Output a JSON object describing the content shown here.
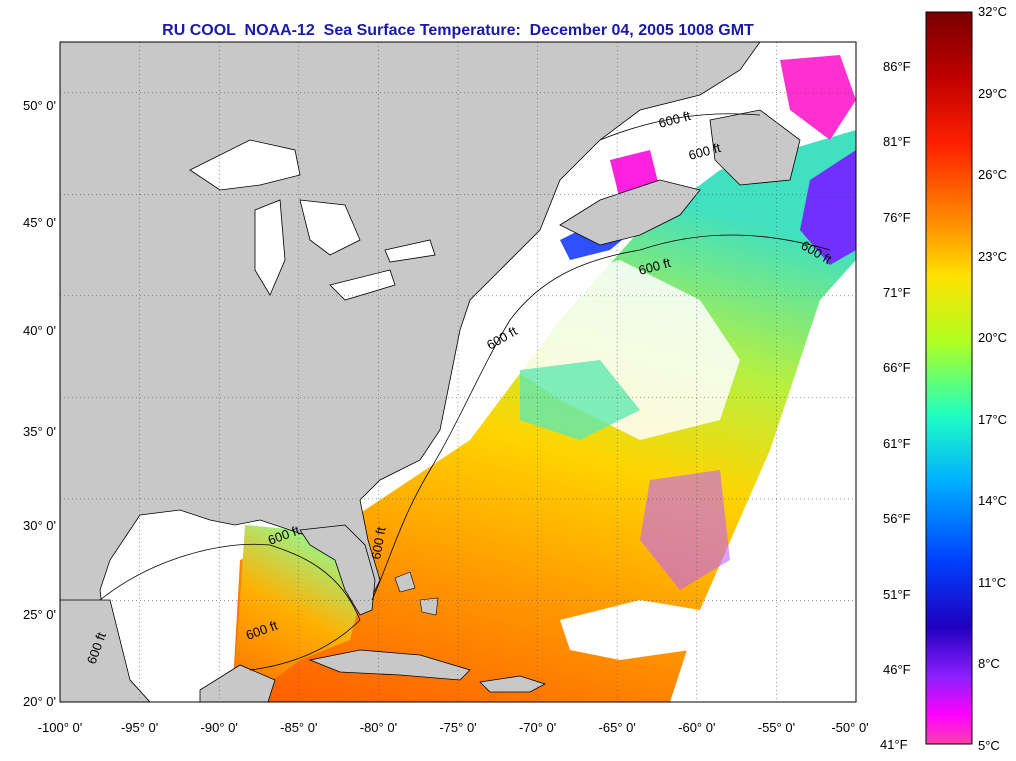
{
  "title": "RU COOL  NOAA-12  Sea Surface Temperature:  December 04, 2005 1008 GMT",
  "map": {
    "lon_range": [
      -100,
      -50
    ],
    "lat_range": [
      20,
      52.5
    ],
    "lon_ticks": [
      "-100° 0'",
      "-95° 0'",
      "-90° 0'",
      "-85° 0'",
      "-80° 0'",
      "-75° 0'",
      "-70° 0'",
      "-65° 0'",
      "-60° 0'",
      "-55° 0'",
      "-50° 0'"
    ],
    "lat_ticks": [
      "50° 0'",
      "45° 0'",
      "40° 0'",
      "35° 0'",
      "30° 0'",
      "25° 0'",
      "20° 0'"
    ],
    "contour_labels": [
      "600 ft",
      "600 ft",
      "600 ft",
      "600 ft",
      "600 ft",
      "600 ft",
      "600 ft",
      "600 ft",
      "600 ft"
    ],
    "grid": true,
    "land_color": "#c8c8c8",
    "no_data_color": "#ffffff"
  },
  "colorbar": {
    "celsius_labels": [
      "32°C",
      "29°C",
      "26°C",
      "23°C",
      "20°C",
      "17°C",
      "14°C",
      "11°C",
      "8°C",
      "5°C"
    ],
    "fahrenheit_labels": [
      "86°F",
      "81°F",
      "76°F",
      "71°F",
      "66°F",
      "61°F",
      "56°F",
      "51°F",
      "46°F",
      "41°F"
    ],
    "colors_top_to_bottom": [
      "#7a0000",
      "#d00000",
      "#ff3000",
      "#ff8800",
      "#ffd000",
      "#e0ff00",
      "#80ff40",
      "#00ffd0",
      "#00b0ff",
      "#0040ff",
      "#2000d0",
      "#8020ff",
      "#ff00ff",
      "#ff40b0"
    ]
  }
}
